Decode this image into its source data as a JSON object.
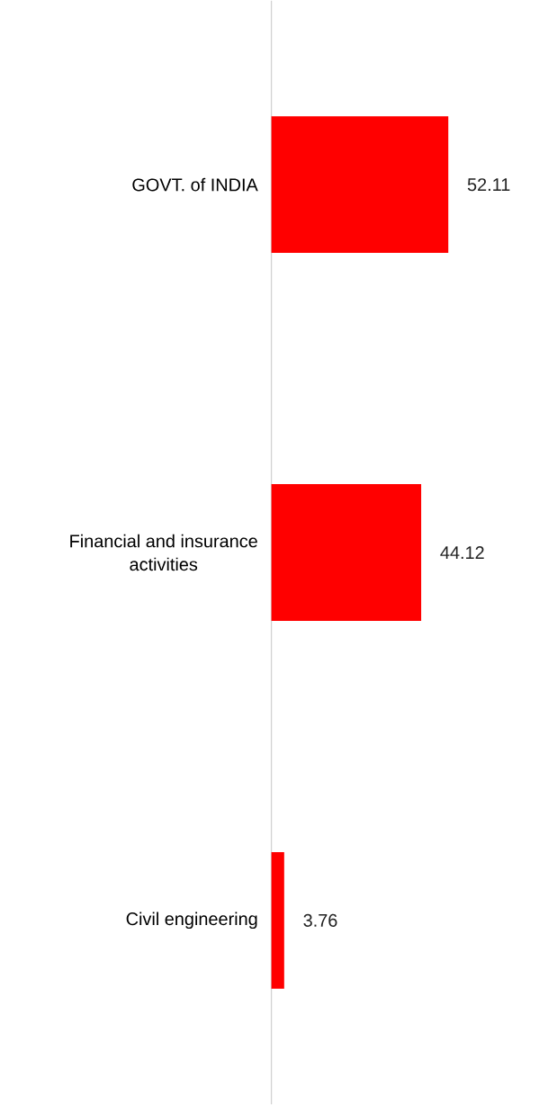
{
  "chart_data": {
    "type": "bar",
    "orientation": "horizontal",
    "categories": [
      "GOVT. of INDIA",
      "Financial and insurance activities",
      "Civil engineering"
    ],
    "values": [
      52.11,
      44.12,
      3.76
    ],
    "color": "#ff0000",
    "data_labels": true
  }
}
